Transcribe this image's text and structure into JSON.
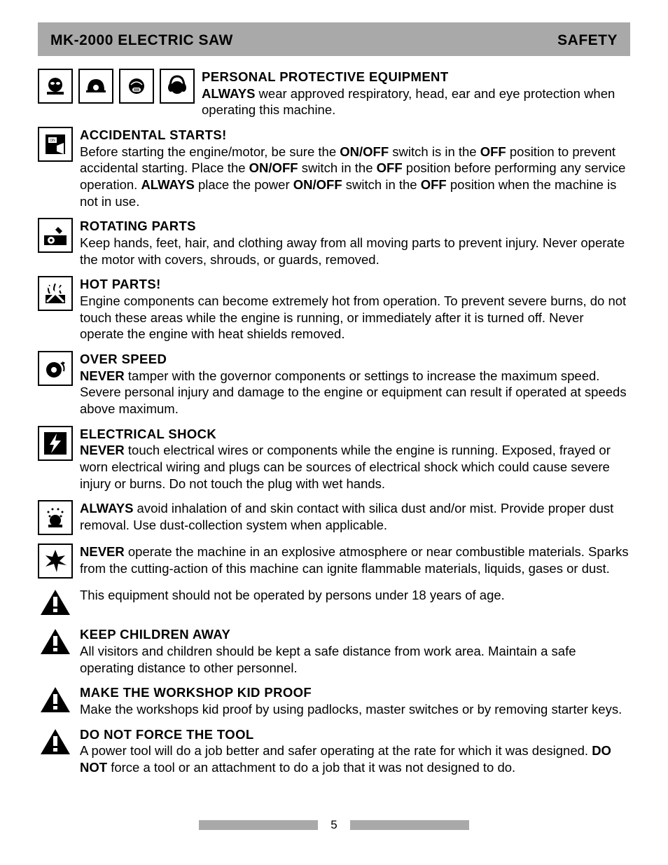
{
  "colors": {
    "header_bg": "#a9a9a9",
    "text": "#000000",
    "page_bg": "#ffffff",
    "icon_border": "#000000"
  },
  "typography": {
    "body_fontsize_pt": 14,
    "title_fontsize_pt": 16,
    "header_fontsize_pt": 16,
    "line_height": 1.28
  },
  "header": {
    "left": "MK-2000 ELECTRIC SAW",
    "right": "SAFETY"
  },
  "sections": [
    {
      "id": "ppe",
      "icons": [
        "goggles-icon",
        "helmet-icon",
        "mask-icon",
        "earmuffs-icon"
      ],
      "title": "PERSONAL PROTECTIVE EQUIPMENT",
      "body_parts": [
        {
          "bold": true,
          "text": "ALWAYS"
        },
        {
          "bold": false,
          "text": " wear approved respiratory, head, ear and eye protection when operating this machine."
        }
      ]
    },
    {
      "id": "accidental",
      "icons": [
        "switch-on-icon"
      ],
      "title": "ACCIDENTAL STARTS!",
      "body_parts": [
        {
          "bold": false,
          "text": "Before starting the engine/motor, be sure the "
        },
        {
          "bold": true,
          "text": "ON/OFF"
        },
        {
          "bold": false,
          "text": " switch is in the "
        },
        {
          "bold": true,
          "text": "OFF"
        },
        {
          "bold": false,
          "text": " position to prevent accidental starting. Place the "
        },
        {
          "bold": true,
          "text": "ON/OFF"
        },
        {
          "bold": false,
          "text": " switch in the "
        },
        {
          "bold": true,
          "text": "OFF"
        },
        {
          "bold": false,
          "text": " position before performing any service operation. "
        },
        {
          "bold": true,
          "text": "ALWAYS"
        },
        {
          "bold": false,
          "text": " place the power "
        },
        {
          "bold": true,
          "text": "ON/OFF"
        },
        {
          "bold": false,
          "text": " switch in the "
        },
        {
          "bold": true,
          "text": "OFF"
        },
        {
          "bold": false,
          "text": " position when the machine is not in use."
        }
      ]
    },
    {
      "id": "rotating",
      "icons": [
        "rotating-parts-icon"
      ],
      "title": "ROTATING PARTS",
      "body_parts": [
        {
          "bold": false,
          "text": "Keep hands, feet, hair, and clothing away from all moving parts to prevent injury. Never operate the motor with covers, shrouds, or guards, removed."
        }
      ]
    },
    {
      "id": "hot",
      "icons": [
        "hot-parts-icon"
      ],
      "title": "HOT PARTS!",
      "body_parts": [
        {
          "bold": false,
          "text": "Engine components can become extremely hot from operation. To prevent severe burns, do not touch these areas while the engine is running, or immediately after it is turned off. Never operate the engine with heat shields removed."
        }
      ]
    },
    {
      "id": "overspeed",
      "icons": [
        "overspeed-icon"
      ],
      "title": "OVER SPEED",
      "body_parts": [
        {
          "bold": true,
          "text": "NEVER"
        },
        {
          "bold": false,
          "text": " tamper with the governor components or settings to increase the maximum speed. Severe personal injury and damage to the engine or equipment can result if operated at speeds above maximum."
        }
      ]
    },
    {
      "id": "shock",
      "icons": [
        "shock-icon"
      ],
      "title": "ELECTRICAL SHOCK",
      "body_parts": [
        {
          "bold": true,
          "text": "NEVER"
        },
        {
          "bold": false,
          "text": " touch electrical wires or components while the engine is running. Exposed, frayed or worn electrical wiring and plugs can be sources of electrical shock which could cause severe injury or burns. Do not touch the plug with wet hands."
        }
      ]
    },
    {
      "id": "dust",
      "icons": [
        "dust-icon"
      ],
      "title": "",
      "body_parts": [
        {
          "bold": true,
          "text": "ALWAYS"
        },
        {
          "bold": false,
          "text": " avoid inhalation of and skin contact with silica dust and/or mist. Provide proper dust removal. Use dust-collection system when applicable."
        }
      ]
    },
    {
      "id": "explosive",
      "icons": [
        "explosion-icon"
      ],
      "title": "",
      "body_parts": [
        {
          "bold": true,
          "text": "NEVER"
        },
        {
          "bold": false,
          "text": " operate the machine in an explosive atmosphere or near combustible materials. Sparks from the cutting-action of this machine can ignite flammable materials, liquids, gases or dust."
        }
      ]
    },
    {
      "id": "age",
      "icons": [
        "warning-triangle-icon"
      ],
      "title": "",
      "body_parts": [
        {
          "bold": false,
          "text": "This equipment should not be operated by persons under 18 years of age."
        }
      ]
    },
    {
      "id": "children",
      "icons": [
        "warning-triangle-icon"
      ],
      "title": "KEEP CHILDREN AWAY",
      "body_parts": [
        {
          "bold": false,
          "text": "All visitors and children should be kept a safe distance from work area. Maintain a safe operating distance to other personnel."
        }
      ]
    },
    {
      "id": "kidproof",
      "icons": [
        "warning-triangle-icon"
      ],
      "title": "MAKE THE WORKSHOP KID PROOF",
      "body_parts": [
        {
          "bold": false,
          "text": "Make the workshops kid proof by using padlocks, master switches or by removing starter keys."
        }
      ]
    },
    {
      "id": "force",
      "icons": [
        "warning-triangle-icon"
      ],
      "title": "DO NOT FORCE THE TOOL",
      "body_parts": [
        {
          "bold": false,
          "text": "A power tool will do a job better and safer operating at the rate for which it was designed. "
        },
        {
          "bold": true,
          "text": "DO NOT"
        },
        {
          "bold": false,
          "text": " force a tool or an attachment to do a job that it was not designed to do."
        }
      ]
    }
  ],
  "footer": {
    "page_number": "5"
  },
  "icon_svgs": {
    "goggles-icon": "<svg viewBox='0 0 40 40'><circle cx='20' cy='18' r='10' fill='#000'/><ellipse cx='16' cy='16' rx='3' ry='2' fill='#fff'/><ellipse cx='24' cy='16' rx='3' ry='2' fill='#fff'/><rect x='8' y='28' width='24' height='4' fill='#000'/></svg>",
    "helmet-icon": "<svg viewBox='0 0 40 40'><path d='M8 26 Q8 10 20 10 Q32 10 32 26 Z' fill='#000'/><rect x='6' y='26' width='28' height='3' fill='#000'/><circle cx='20' cy='22' r='4' fill='#fff'/></svg>",
    "mask-icon": "<svg viewBox='0 0 40 40'><circle cx='20' cy='20' r='11' fill='#000'/><path d='M12 18 Q20 10 28 18' stroke='#fff' fill='none' stroke-width='1.5'/><rect x='14' y='22' width='12' height='6' rx='3' fill='#fff'/><line x1='16' y1='24' x2='24' y2='24' stroke='#000'/><line x1='16' y1='26' x2='24' y2='26' stroke='#000'/></svg>",
    "earmuffs-icon": "<svg viewBox='0 0 40 40'><circle cx='20' cy='22' r='9' fill='#000'/><path d='M10 22 Q10 6 20 6 Q30 6 30 22' stroke='#000' fill='none' stroke-width='3'/><ellipse cx='11' cy='22' rx='4' ry='6' fill='#000'/><ellipse cx='29' cy='22' rx='4' ry='6' fill='#000'/></svg>",
    "switch-on-icon": "<svg viewBox='0 0 40 40'><rect x='6' y='6' width='28' height='28' fill='#000'/><rect x='10' y='10' width='12' height='8' fill='#fff'/><text x='16' y='16' font-size='5' fill='#000' text-anchor='middle'>ON</text><polygon points='22,22 32,18 32,34 22,30' fill='#fff'/></svg>",
    "rotating-parts-icon": "<svg viewBox='0 0 40 40'><rect x='4' y='20' width='32' height='14' fill='#000'/><circle cx='14' cy='27' r='5' fill='#fff'/><circle cx='14' cy='27' r='2' fill='#000'/><path d='M24 8 L30 14 L26 18 L20 12 Z' fill='#000'/></svg>",
    "hot-parts-icon": "<svg viewBox='0 0 40 40'><rect x='6' y='22' width='28' height='12' fill='#000'/><path d='M12 8 Q8 14 12 20 M20 6 Q16 14 20 22 M28 8 Q24 14 28 20' stroke='#000' fill='none' stroke-width='2'/><line x1='8' y1='8' x2='32' y2='32' stroke='#fff' stroke-width='3'/><line x1='32' y1='8' x2='8' y2='32' stroke='#fff' stroke-width='3'/></svg>",
    "overspeed-icon": "<svg viewBox='0 0 40 40'><circle cx='18' cy='22' r='11' fill='#000'/><circle cx='18' cy='22' r='4' fill='#fff'/><path d='M28 12 Q34 16 32 24' stroke='#000' fill='none' stroke-width='2'/><polygon points='30,10 34,12 30,16' fill='#000'/></svg>",
    "shock-icon": "<svg viewBox='0 0 40 40'><rect x='4' y='4' width='32' height='32' fill='#000'/><polygon points='22,6 12,22 18,22 14,34 28,16 20,16' fill='#fff'/></svg>",
    "dust-icon": "<svg viewBox='0 0 40 40'><circle cx='20' cy='24' r='8' fill='#000'/><circle cx='10' cy='12' r='1.5' fill='#000'/><circle cx='16' cy='8' r='1.5' fill='#000'/><circle cx='24' cy='8' r='1.5' fill='#000'/><circle cx='30' cy='12' r='1.5' fill='#000'/><circle cx='12' cy='18' r='1.5' fill='#000'/><circle cx='28' cy='18' r='1.5' fill='#000'/><rect x='10' y='30' width='20' height='4' fill='#000'/></svg>",
    "explosion-icon": "<svg viewBox='0 0 40 40'><polygon points='20,4 24,14 34,12 26,20 36,26 24,24 22,36 18,24 6,28 14,20 6,12 16,14' fill='#000'/></svg>",
    "warning-triangle-icon": "<svg viewBox='0 0 46 40'><polygon points='23,2 44,38 2,38' fill='#000'/><rect x='20' y='12' width='6' height='14' fill='#fff'/><rect x='20' y='29' width='6' height='5' fill='#fff'/></svg>"
  }
}
